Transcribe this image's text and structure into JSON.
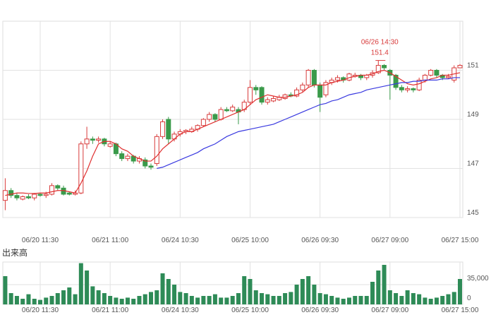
{
  "chart_data": {
    "type": "candlestick",
    "categories": [
      null,
      null,
      null,
      null,
      null,
      null,
      "06/20 11:30",
      null,
      null,
      null,
      null,
      null,
      null,
      null,
      null,
      null,
      null,
      null,
      "06/21 11:00",
      null,
      null,
      null,
      null,
      null,
      null,
      null,
      null,
      null,
      null,
      null,
      "06/24 10:30",
      null,
      null,
      null,
      null,
      null,
      null,
      null,
      null,
      null,
      null,
      null,
      "06/25 10:00",
      null,
      null,
      null,
      null,
      null,
      null,
      null,
      null,
      null,
      null,
      null,
      "06/26 09:30",
      null,
      null,
      null,
      null,
      null,
      null,
      null,
      null,
      null,
      null,
      null,
      "06/27 09:00",
      null,
      null,
      null,
      null,
      null,
      null,
      null,
      null,
      null,
      null,
      null,
      "06/27 15:00"
    ],
    "open": [
      145.7,
      146.1,
      145.9,
      145.75,
      145.85,
      145.8,
      145.95,
      145.9,
      145.95,
      146.3,
      146.2,
      146.0,
      145.95,
      146.0,
      148.0,
      148.2,
      148.15,
      148.2,
      147.9,
      148.0,
      147.6,
      147.4,
      147.5,
      147.3,
      147.35,
      147.1,
      147.2,
      148.3,
      149.0,
      148.2,
      148.4,
      148.5,
      148.5,
      148.6,
      148.75,
      149.0,
      149.2,
      149.0,
      149.4,
      149.35,
      149.4,
      149.4,
      149.7,
      150.3,
      150.3,
      149.7,
      149.75,
      149.8,
      149.85,
      150.0,
      149.95,
      150.2,
      150.4,
      151.0,
      150.4,
      150.0,
      150.5,
      150.6,
      150.7,
      150.6,
      150.75,
      150.8,
      150.7,
      150.8,
      150.9,
      151.2,
      151.0,
      150.8,
      150.3,
      150.2,
      150.25,
      150.2,
      150.6,
      150.8,
      151.0,
      150.8,
      150.7,
      150.6,
      151.1
    ],
    "close": [
      146.1,
      145.9,
      145.8,
      145.85,
      145.8,
      145.95,
      145.9,
      145.95,
      146.3,
      146.2,
      145.95,
      145.95,
      146.0,
      148.0,
      148.2,
      148.15,
      148.2,
      148.0,
      148.0,
      147.6,
      147.4,
      147.5,
      147.3,
      147.4,
      147.1,
      147.05,
      148.3,
      148.9,
      148.2,
      148.4,
      148.5,
      148.55,
      148.6,
      148.75,
      149.0,
      149.2,
      149.0,
      149.4,
      149.35,
      149.5,
      149.3,
      149.7,
      150.3,
      150.2,
      149.7,
      149.8,
      149.85,
      149.9,
      150.0,
      149.95,
      150.2,
      150.4,
      151.0,
      150.4,
      149.9,
      150.5,
      150.6,
      150.7,
      150.6,
      150.85,
      150.8,
      150.7,
      150.8,
      150.9,
      151.2,
      151.1,
      150.8,
      150.3,
      150.2,
      150.25,
      150.2,
      150.6,
      150.8,
      151.0,
      150.8,
      150.7,
      150.75,
      151.1,
      151.2
    ],
    "high": [
      146.6,
      146.2,
      146.0,
      145.9,
      145.95,
      146.0,
      146.0,
      146.05,
      146.4,
      146.35,
      146.3,
      146.05,
      146.1,
      148.1,
      148.7,
      148.3,
      148.3,
      148.25,
      148.1,
      148.05,
      147.7,
      147.6,
      147.55,
      147.5,
      147.45,
      147.2,
      148.4,
      149.0,
      149.1,
      148.5,
      148.6,
      148.6,
      148.7,
      148.8,
      149.05,
      149.3,
      149.25,
      149.5,
      149.5,
      149.6,
      149.5,
      149.8,
      150.6,
      150.4,
      150.35,
      149.9,
      149.95,
      150.0,
      150.05,
      150.1,
      150.3,
      150.5,
      151.05,
      151.05,
      150.5,
      150.6,
      150.7,
      150.8,
      150.75,
      150.9,
      150.9,
      150.85,
      150.85,
      151.0,
      151.4,
      151.25,
      151.05,
      150.85,
      150.4,
      150.35,
      150.3,
      150.7,
      150.85,
      151.05,
      151.05,
      150.85,
      150.85,
      151.2,
      151.25
    ],
    "low": [
      145.3,
      145.8,
      145.7,
      145.7,
      145.75,
      145.7,
      145.85,
      145.8,
      145.9,
      146.1,
      145.9,
      145.9,
      145.9,
      145.95,
      147.8,
      148.0,
      148.05,
      147.9,
      147.85,
      147.5,
      147.3,
      147.3,
      147.2,
      147.2,
      147.0,
      146.95,
      147.1,
      148.2,
      148.0,
      148.1,
      148.3,
      148.4,
      148.45,
      148.5,
      148.7,
      148.9,
      148.9,
      148.95,
      149.3,
      149.3,
      148.8,
      149.3,
      149.6,
      150.0,
      149.6,
      149.6,
      149.7,
      149.75,
      149.8,
      149.9,
      149.9,
      150.1,
      150.3,
      150.3,
      149.3,
      149.9,
      150.4,
      150.5,
      150.5,
      150.55,
      150.7,
      150.6,
      150.6,
      150.7,
      150.85,
      151.0,
      149.8,
      150.2,
      150.1,
      150.1,
      150.1,
      150.15,
      150.5,
      150.75,
      150.7,
      150.6,
      150.65,
      150.5,
      151.1
    ],
    "up_color": "#d83b3b",
    "down_color": "#3a9a4a",
    "ma_series": [
      {
        "color": "#e03030",
        "values": [
          145.9,
          145.95,
          146.0,
          146.0,
          145.98,
          145.98,
          146.0,
          146.0,
          146.05,
          146.1,
          146.1,
          146.05,
          146.0,
          146.4,
          146.9,
          147.5,
          148.0,
          148.1,
          148.1,
          148.0,
          147.8,
          147.7,
          147.5,
          147.4,
          147.3,
          147.3,
          147.5,
          147.8,
          148.0,
          148.2,
          148.4,
          148.5,
          148.5,
          148.6,
          148.7,
          148.8,
          148.9,
          149.0,
          149.1,
          149.2,
          149.3,
          149.4,
          149.6,
          149.8,
          149.9,
          150.0,
          149.95,
          149.9,
          149.9,
          149.95,
          150.0,
          150.1,
          150.3,
          150.4,
          150.4,
          150.4,
          150.5,
          150.55,
          150.6,
          150.7,
          150.75,
          150.8,
          150.8,
          150.85,
          150.95,
          151.0,
          150.9,
          150.75,
          150.6,
          150.45,
          150.4,
          150.45,
          150.55,
          150.65,
          150.7,
          150.8,
          150.8,
          150.85,
          150.9
        ]
      },
      {
        "color": "#3a3ae0",
        "values": [
          null,
          null,
          null,
          null,
          null,
          null,
          null,
          null,
          null,
          null,
          null,
          null,
          null,
          null,
          null,
          null,
          null,
          null,
          null,
          null,
          null,
          null,
          null,
          null,
          null,
          null,
          147.0,
          147.05,
          147.15,
          147.25,
          147.35,
          147.45,
          147.55,
          147.65,
          147.8,
          147.9,
          148.0,
          148.15,
          148.3,
          148.4,
          148.5,
          148.55,
          148.6,
          148.65,
          148.7,
          148.75,
          148.8,
          148.9,
          149.0,
          149.1,
          149.2,
          149.3,
          149.4,
          149.5,
          149.6,
          149.65,
          149.75,
          149.8,
          149.9,
          150.0,
          150.05,
          150.1,
          150.2,
          150.25,
          150.3,
          150.35,
          150.4,
          150.45,
          150.5,
          150.5,
          150.55,
          150.55,
          150.6,
          150.6,
          150.6,
          150.65,
          150.65,
          150.7,
          150.7
        ]
      }
    ],
    "ylim": [
      145,
      153
    ],
    "yticks": [
      145,
      147,
      149,
      151
    ],
    "grid": true,
    "annotation": {
      "label": "06/26 14:30",
      "value": 151.4,
      "color": "#d83b3b"
    },
    "volume": {
      "title": "出来高",
      "color": "#2e8b57",
      "values": [
        50000,
        20000,
        15000,
        10000,
        18000,
        10000,
        8000,
        12000,
        15000,
        20000,
        25000,
        30000,
        18000,
        73000,
        60000,
        32000,
        25000,
        20000,
        15000,
        12000,
        10000,
        12000,
        10000,
        15000,
        18000,
        22000,
        25000,
        55000,
        45000,
        35000,
        22000,
        20000,
        15000,
        12000,
        15000,
        15000,
        18000,
        12000,
        12000,
        15000,
        20000,
        50000,
        45000,
        25000,
        20000,
        18000,
        15000,
        15000,
        20000,
        22000,
        35000,
        45000,
        50000,
        35000,
        20000,
        18000,
        15000,
        12000,
        10000,
        12000,
        15000,
        15000,
        15000,
        40000,
        60000,
        70000,
        25000,
        20000,
        15000,
        25000,
        20000,
        18000,
        12000,
        10000,
        12000,
        15000,
        18000,
        22000,
        45000
      ],
      "ylim": [
        0,
        75000
      ],
      "yticks": [
        0,
        {
          "value": 35000,
          "label": "35,000"
        }
      ]
    }
  }
}
